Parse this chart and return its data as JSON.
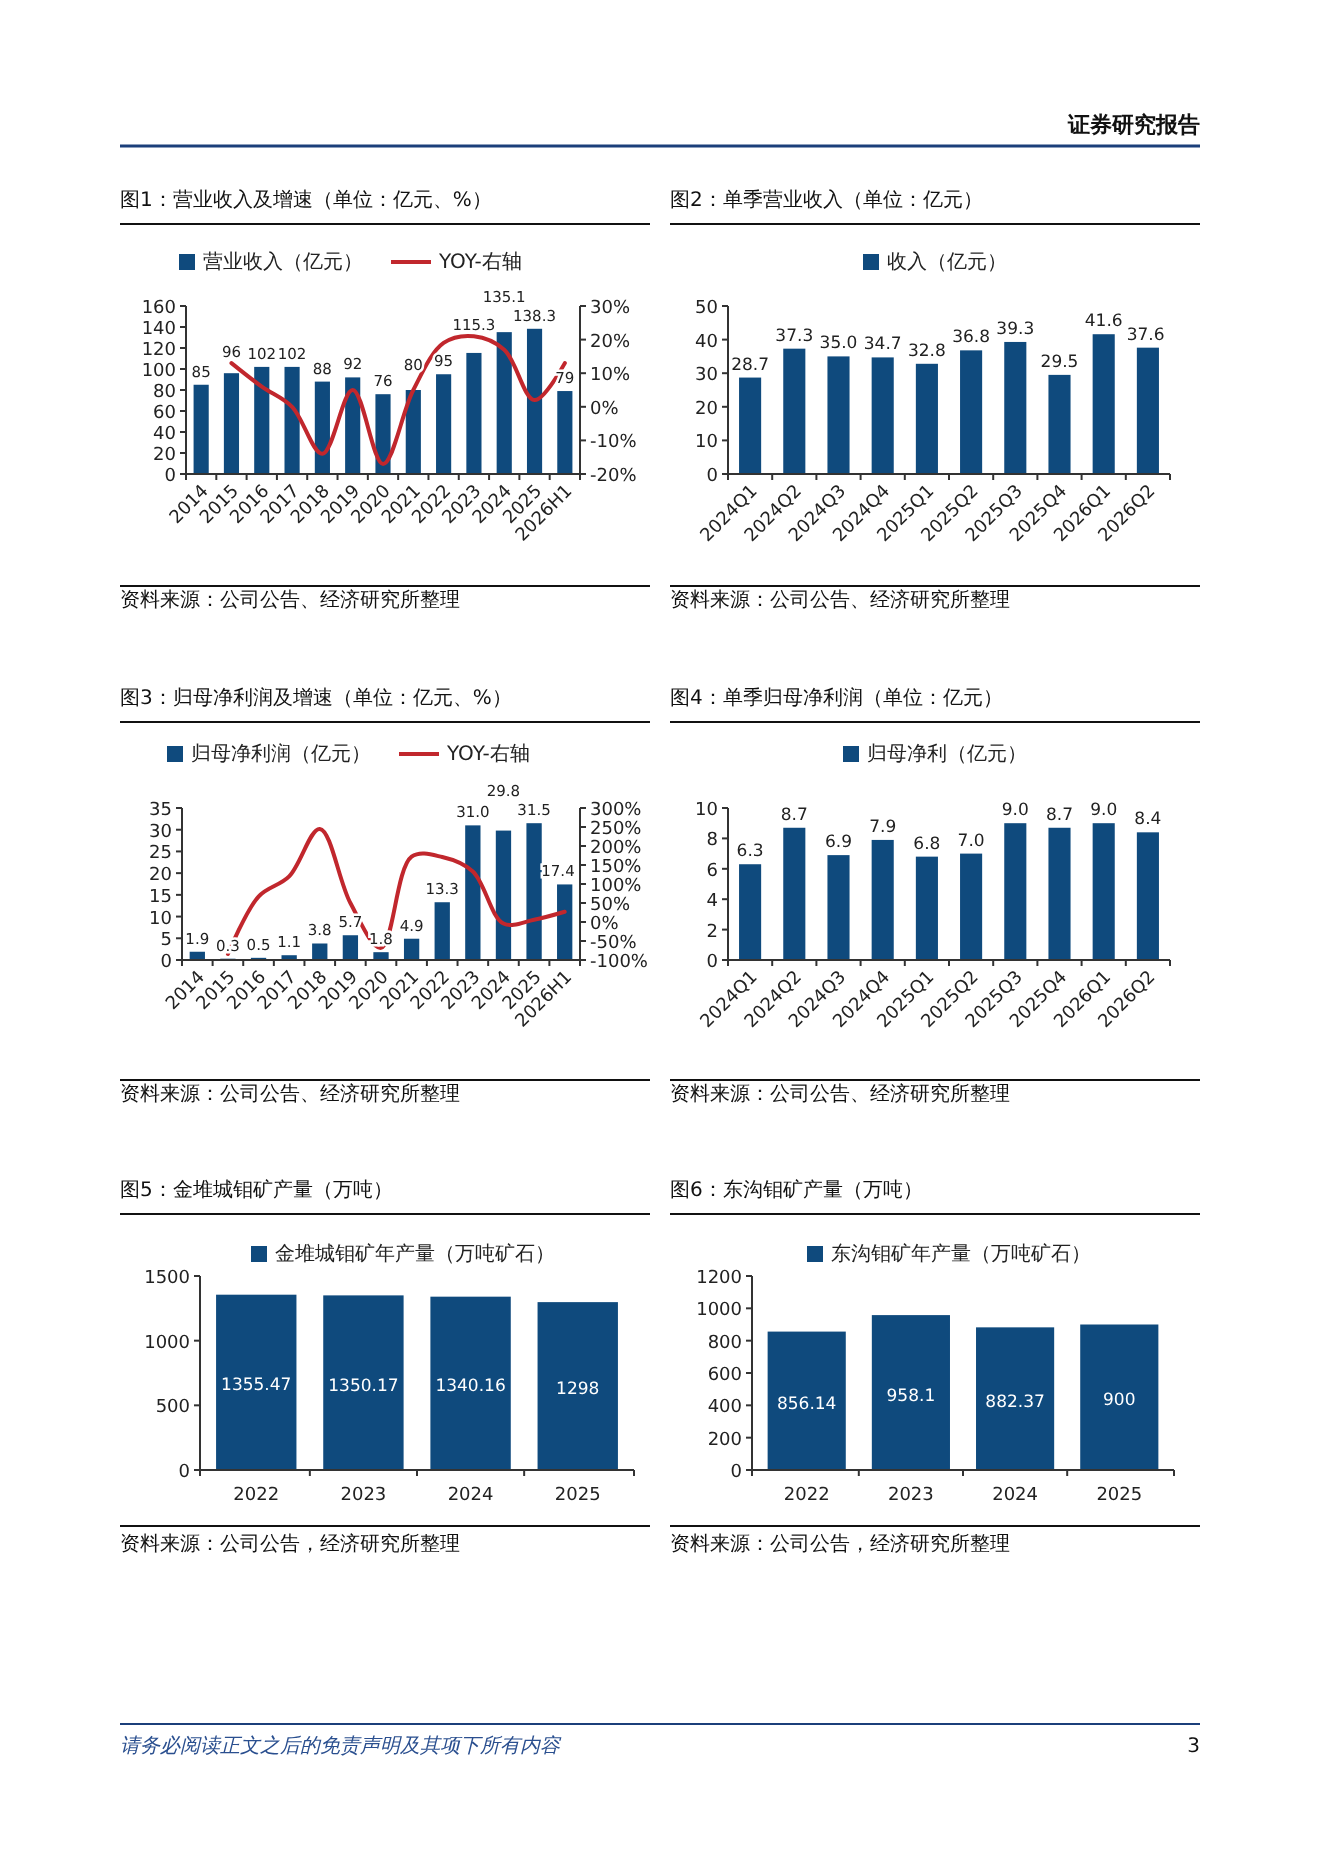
{
  "chart_data": [
    {
      "type": "bar",
      "title": "图1：营业收入及增速（单位：亿元、%）",
      "categories": [
        "2014",
        "2015",
        "2016",
        "2017",
        "2018",
        "2019",
        "2020",
        "2021",
        "2022",
        "2023",
        "2024",
        "2025",
        "2026H1"
      ],
      "series": [
        {
          "name": "营业收入（亿元）",
          "color": "#0f4a7d",
          "values": [
            85,
            96,
            102,
            102,
            88,
            92,
            76,
            80,
            95,
            115.3,
            135.1,
            138.3,
            79
          ],
          "value_labels": [
            "85",
            "96",
            "102",
            "102",
            "88",
            "92",
            "76",
            "80",
            "95",
            "115.3",
            "135.1",
            "138.3",
            "79"
          ]
        },
        {
          "name": "YOY-右轴",
          "type": "line",
          "axis": "y2",
          "color": "#c1272d",
          "values": [
            null,
            13,
            6,
            0,
            -14,
            5,
            -17,
            5,
            19,
            21,
            17,
            2,
            13
          ]
        }
      ],
      "ylim": [
        0,
        160
      ],
      "yticks": [
        0,
        20,
        40,
        60,
        80,
        100,
        120,
        140,
        160
      ],
      "y2lim": [
        -20,
        30
      ],
      "y2ticks": [
        {
          "value": -20,
          "label": "-20%"
        },
        {
          "value": -10,
          "label": "-10%"
        },
        {
          "value": 0,
          "label": "0%"
        },
        {
          "value": 10,
          "label": "10%"
        },
        {
          "value": 20,
          "label": "20%"
        },
        {
          "value": 30,
          "label": "30%"
        }
      ],
      "legend": "top",
      "annotations": [
        "资料来源：公司公告、经济研究所整理"
      ]
    },
    {
      "type": "bar",
      "title": "图2：单季营业收入（单位：亿元）",
      "categories": [
        "2024Q1",
        "2024Q2",
        "2024Q3",
        "2024Q4",
        "2025Q1",
        "2025Q2",
        "2025Q3",
        "2025Q4",
        "2026Q1",
        "2026Q2"
      ],
      "series": [
        {
          "name": "收入（亿元）",
          "color": "#0f4a7d",
          "values": [
            28.7,
            37.3,
            35.0,
            34.7,
            32.8,
            36.8,
            39.3,
            29.5,
            41.6,
            37.6
          ],
          "value_labels": [
            "28.7",
            "37.3",
            "35.0",
            "34.7",
            "32.8",
            "36.8",
            "39.3",
            "29.5",
            "41.6",
            "37.6"
          ]
        }
      ],
      "ylim": [
        0,
        50
      ],
      "yticks": [
        0,
        10,
        20,
        30,
        40,
        50
      ],
      "legend": "top",
      "annotations": [
        "资料来源：公司公告、经济研究所整理"
      ]
    },
    {
      "type": "bar",
      "title": "图3：归母净利润及增速（单位：亿元、%）",
      "categories": [
        "2014",
        "2015",
        "2016",
        "2017",
        "2018",
        "2019",
        "2020",
        "2021",
        "2022",
        "2023",
        "2024",
        "2025",
        "2026H1"
      ],
      "series": [
        {
          "name": "归母净利润（亿元）",
          "color": "#0f4a7d",
          "values": [
            1.9,
            0.3,
            0.5,
            1.1,
            3.8,
            5.7,
            1.8,
            4.9,
            13.3,
            31.0,
            29.8,
            31.5,
            17.4
          ],
          "value_labels": [
            "1.9",
            "0.3",
            "0.5",
            "1.1",
            "3.8",
            "5.7",
            "1.8",
            "4.9",
            "13.3",
            "31.0",
            "29.8",
            "31.5",
            "17.4"
          ]
        },
        {
          "name": "YOY-右轴",
          "type": "line",
          "axis": "y2",
          "color": "#c1272d",
          "values": [
            null,
            -84,
            67,
            120,
            245,
            50,
            -68,
            172,
            171,
            133,
            -4,
            6,
            27
          ]
        }
      ],
      "ylim": [
        0,
        35
      ],
      "yticks": [
        0,
        5,
        10,
        15,
        20,
        25,
        30,
        35
      ],
      "y2lim": [
        -100,
        300
      ],
      "y2ticks": [
        {
          "value": -100,
          "label": "-100%"
        },
        {
          "value": -50,
          "label": "-50%"
        },
        {
          "value": 0,
          "label": "0%"
        },
        {
          "value": 50,
          "label": "50%"
        },
        {
          "value": 100,
          "label": "100%"
        },
        {
          "value": 150,
          "label": "150%"
        },
        {
          "value": 200,
          "label": "200%"
        },
        {
          "value": 250,
          "label": "250%"
        },
        {
          "value": 300,
          "label": "300%"
        }
      ],
      "legend": "top",
      "annotations": [
        "资料来源：公司公告、经济研究所整理"
      ]
    },
    {
      "type": "bar",
      "title": "图4：单季归母净利润（单位：亿元）",
      "categories": [
        "2024Q1",
        "2024Q2",
        "2024Q3",
        "2024Q4",
        "2025Q1",
        "2025Q2",
        "2025Q3",
        "2025Q4",
        "2026Q1",
        "2026Q2"
      ],
      "series": [
        {
          "name": "归母净利（亿元）",
          "color": "#0f4a7d",
          "values": [
            6.3,
            8.7,
            6.9,
            7.9,
            6.8,
            7.0,
            9.0,
            8.7,
            9.0,
            8.4
          ],
          "value_labels": [
            "6.3",
            "8.7",
            "6.9",
            "7.9",
            "6.8",
            "7.0",
            "9.0",
            "8.7",
            "9.0",
            "8.4"
          ]
        }
      ],
      "ylim": [
        0,
        10
      ],
      "yticks": [
        0,
        2,
        4,
        6,
        8,
        10
      ],
      "legend": "top",
      "annotations": [
        "资料来源：公司公告、经济研究所整理"
      ]
    },
    {
      "type": "bar",
      "title": "图5：金堆城钼矿产量（万吨）",
      "categories": [
        "2022",
        "2023",
        "2024",
        "2025"
      ],
      "series": [
        {
          "name": "金堆城钼矿年产量（万吨矿石）",
          "color": "#0f4a7d",
          "values": [
            1355.47,
            1350.17,
            1340.16,
            1298
          ],
          "value_labels": [
            "1355.47",
            "1350.17",
            "1340.16",
            "1298"
          ]
        }
      ],
      "ylim": [
        0,
        1500
      ],
      "yticks": [
        0,
        500,
        1000,
        1500
      ],
      "legend": "top",
      "annotations": [
        "资料来源：公司公告，经济研究所整理"
      ]
    },
    {
      "type": "bar",
      "title": "图6：东沟钼矿产量（万吨）",
      "categories": [
        "2022",
        "2023",
        "2024",
        "2025"
      ],
      "series": [
        {
          "name": "东沟钼矿年产量（万吨矿石）",
          "color": "#0f4a7d",
          "values": [
            856.14,
            958.1,
            882.37,
            900
          ],
          "value_labels": [
            "856.14",
            "958.1",
            "882.37",
            "900"
          ]
        }
      ],
      "ylim": [
        0,
        1200
      ],
      "yticks": [
        0,
        200,
        400,
        600,
        800,
        1000,
        1200
      ],
      "legend": "top",
      "annotations": [
        "资料来源：公司公告，经济研究所整理"
      ]
    },
    {
      "type": "other",
      "annotations": [
        "证券研究报告",
        "请务必阅读正文之后的免责声明及其项下所有内容",
        "3"
      ]
    }
  ]
}
